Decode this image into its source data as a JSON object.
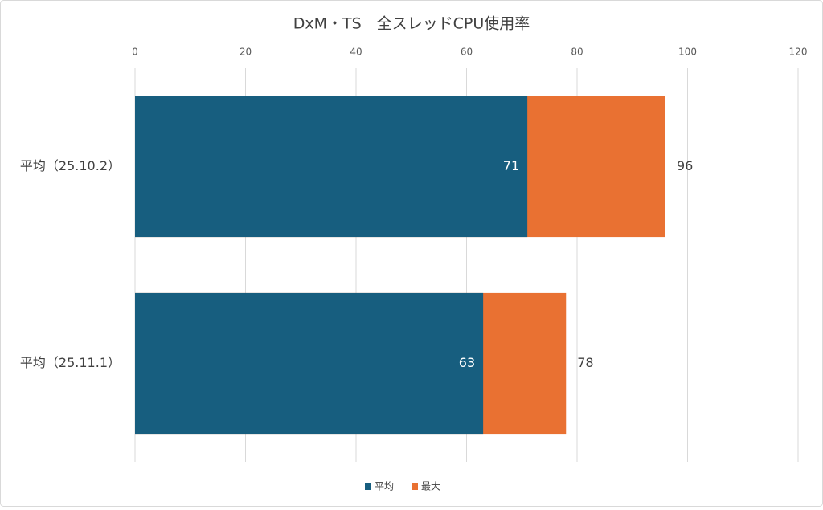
{
  "chart_data": {
    "type": "bar",
    "orientation": "horizontal",
    "title": "DxM・TS　全スレッドCPU使用率",
    "categories": [
      "平均（25.10.2）",
      "平均（25.11.1）"
    ],
    "series": [
      {
        "name": "平均",
        "color": "#175e7f",
        "values": [
          71,
          63
        ]
      },
      {
        "name": "最大",
        "color": "#e97132",
        "values": [
          96,
          78
        ]
      }
    ],
    "xlim": [
      0,
      120
    ],
    "xticks": [
      0,
      20,
      40,
      60,
      80,
      100,
      120
    ],
    "grid": true,
    "legend": "bottom"
  }
}
